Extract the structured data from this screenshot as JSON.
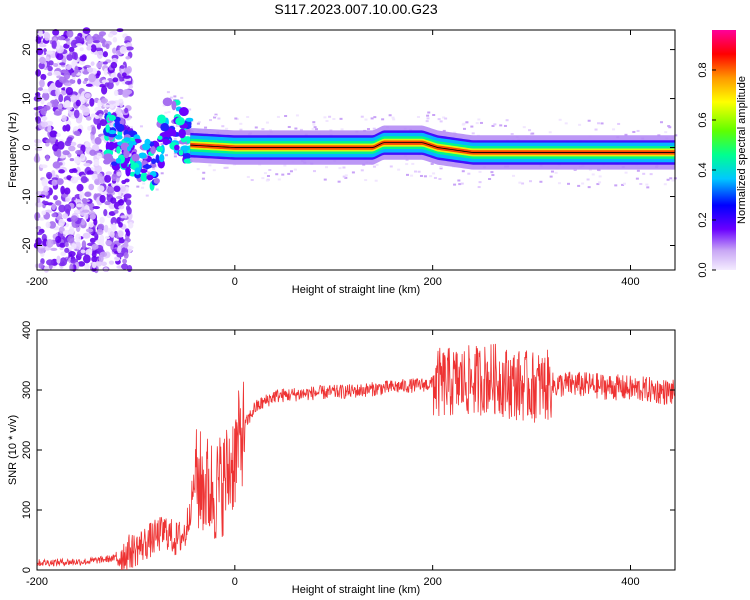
{
  "title": "S117.2023.007.10.00.G23",
  "chart_data": [
    {
      "type": "heatmap",
      "xlabel": "Height of straight line (km)",
      "ylabel": "Frequency (Hz)",
      "xlim": [
        -200,
        445
      ],
      "ylim": [
        -25,
        24
      ],
      "x_ticks": [
        "-200",
        "0",
        "200",
        "400"
      ],
      "y_ticks": [
        "20",
        "10",
        "0",
        "-10",
        "-20"
      ],
      "colorbar": {
        "label": "Normalized spectral amplitude",
        "range": [
          0,
          0.96
        ],
        "ticks": [
          "0.0",
          "0.2",
          "0.4",
          "0.6",
          "0.8"
        ]
      },
      "ridge": [
        {
          "x": -130,
          "y": 2
        },
        {
          "x": -110,
          "y": 0
        },
        {
          "x": -95,
          "y": -2
        },
        {
          "x": -80,
          "y": -4
        },
        {
          "x": -70,
          "y": 5
        },
        {
          "x": -55,
          "y": 4
        },
        {
          "x": -45,
          "y": 0.5
        },
        {
          "x": 0,
          "y": 0
        },
        {
          "x": 140,
          "y": 0
        },
        {
          "x": 150,
          "y": 1
        },
        {
          "x": 190,
          "y": 1
        },
        {
          "x": 205,
          "y": 0
        },
        {
          "x": 240,
          "y": -1
        },
        {
          "x": 445,
          "y": -1
        }
      ]
    },
    {
      "type": "line",
      "xlabel": "Height of straight line (km)",
      "ylabel": "SNR (10 * v/v)",
      "xlim": [
        -200,
        445
      ],
      "ylim": [
        0,
        400
      ],
      "x_ticks": [
        "-200",
        "0",
        "200",
        "400"
      ],
      "y_ticks": [
        "0",
        "100",
        "200",
        "300",
        "400"
      ],
      "color": "#ee3333",
      "series": [
        {
          "x": [
            -200,
            -150,
            -120,
            -100,
            -80,
            -70,
            -60,
            -50,
            -40,
            -30,
            -20,
            -10,
            0,
            10,
            20,
            40,
            80,
            120,
            160,
            200,
            240,
            260,
            280,
            300,
            340,
            380,
            420,
            445
          ],
          "y": [
            12,
            14,
            20,
            35,
            55,
            65,
            50,
            60,
            150,
            140,
            130,
            150,
            190,
            240,
            270,
            290,
            295,
            298,
            305,
            310,
            315,
            320,
            310,
            305,
            310,
            305,
            300,
            295
          ]
        }
      ]
    }
  ]
}
